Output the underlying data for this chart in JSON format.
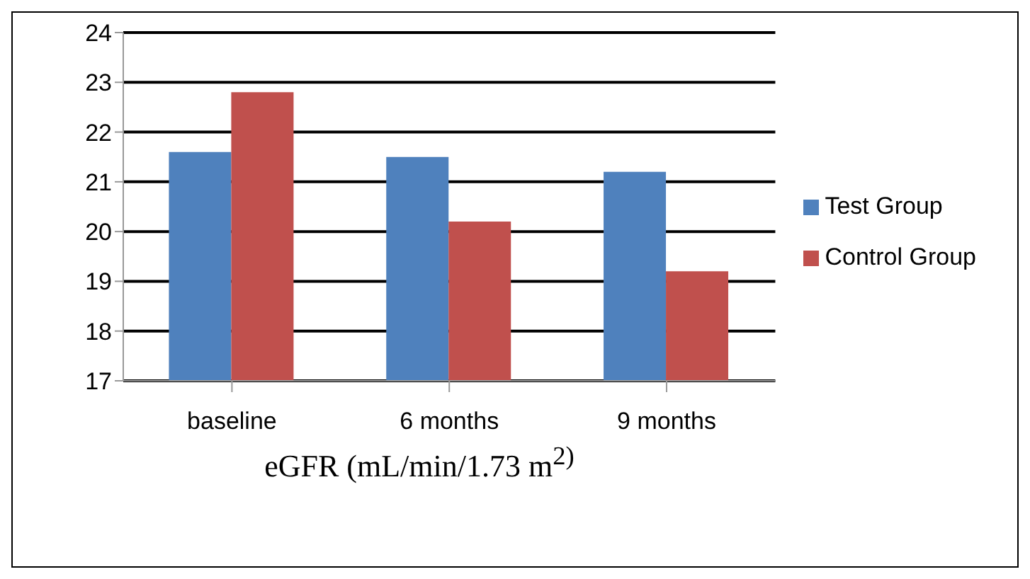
{
  "chart_data": {
    "type": "bar",
    "xlabel": "eGFR (mL/min/1.73 m$^{2)}$",
    "categories": [
      "baseline",
      "6 months",
      "9 months"
    ],
    "series": [
      {
        "name": "Test Group",
        "color": "#4f81bd",
        "values": [
          21.6,
          21.5,
          21.2
        ]
      },
      {
        "name": "Control Group",
        "color": "#c0504d",
        "values": [
          22.8,
          20.2,
          19.2
        ]
      }
    ],
    "ylim": [
      17,
      24
    ],
    "yticks": [
      17,
      18,
      19,
      20,
      21,
      22,
      23,
      24
    ],
    "grid": "y",
    "legend": "right"
  }
}
